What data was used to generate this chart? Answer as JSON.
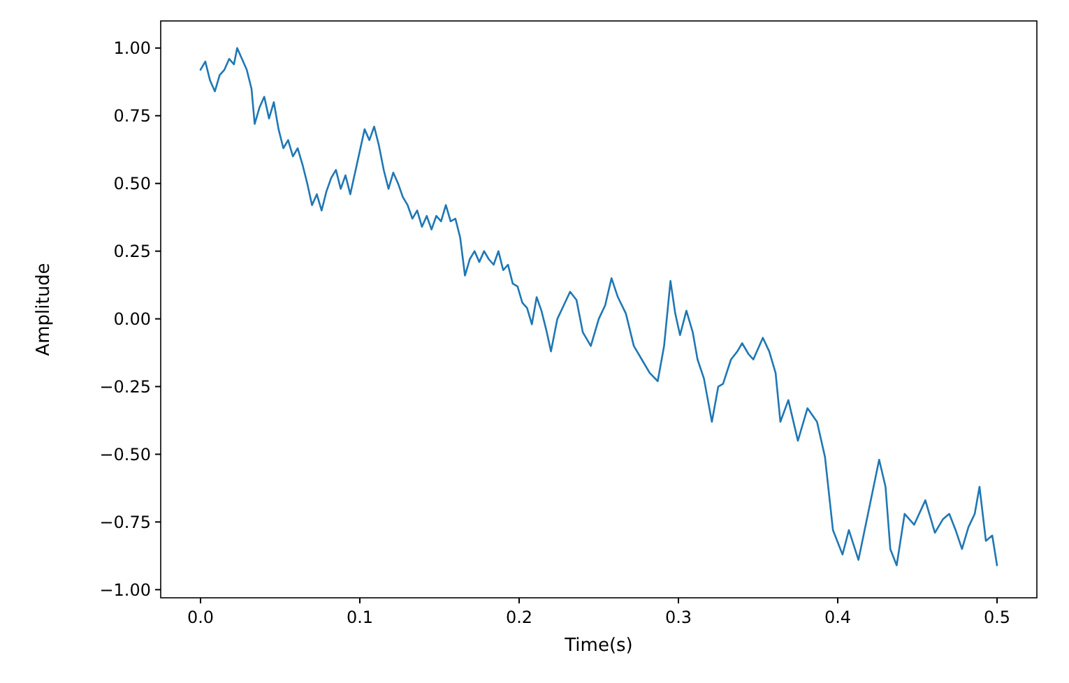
{
  "chart_data": {
    "type": "line",
    "xlabel": "Time(s)",
    "ylabel": "Amplitude",
    "xlim": [
      -0.025,
      0.525
    ],
    "ylim": [
      -1.03,
      1.1
    ],
    "xticks": [
      {
        "value": 0,
        "label": "0.0"
      },
      0.1,
      0.2,
      0.3,
      0.4,
      0.5
    ],
    "yticks": [
      {
        "value": -1,
        "label": "−1.00"
      },
      {
        "value": -0.75,
        "label": "−0.75"
      },
      {
        "value": -0.5,
        "label": "−0.50"
      },
      {
        "value": -0.25,
        "label": "−0.25"
      },
      {
        "value": 0,
        "label": "0.00"
      },
      {
        "value": 0.25,
        "label": "0.25"
      },
      {
        "value": 0.5,
        "label": "0.50"
      },
      {
        "value": 0.75,
        "label": "0.75"
      },
      {
        "value": 1,
        "label": "1.00"
      }
    ],
    "x": [
      0,
      0.003,
      0.006,
      0.009,
      0.012,
      0.015,
      0.018,
      0.021,
      0.023,
      0.026,
      0.029,
      0.032,
      0.034,
      0.037,
      0.04,
      0.043,
      0.046,
      0.049,
      0.052,
      0.055,
      0.058,
      0.061,
      0.064,
      0.067,
      0.07,
      0.073,
      0.076,
      0.079,
      0.082,
      0.085,
      0.088,
      0.091,
      0.094,
      0.097,
      0.1,
      0.103,
      0.106,
      0.109,
      0.112,
      0.115,
      0.118,
      0.121,
      0.124,
      0.127,
      0.13,
      0.133,
      0.136,
      0.139,
      0.142,
      0.145,
      0.148,
      0.151,
      0.154,
      0.157,
      0.16,
      0.163,
      0.166,
      0.169,
      0.172,
      0.175,
      0.178,
      0.181,
      0.184,
      0.187,
      0.19,
      0.193,
      0.196,
      0.199,
      0.202,
      0.205,
      0.208,
      0.211,
      0.214,
      0.217,
      0.22,
      0.224,
      0.228,
      0.232,
      0.236,
      0.24,
      0.245,
      0.25,
      0.254,
      0.258,
      0.262,
      0.267,
      0.272,
      0.277,
      0.282,
      0.287,
      0.291,
      0.295,
      0.298,
      0.301,
      0.305,
      0.309,
      0.312,
      0.316,
      0.321,
      0.325,
      0.328,
      0.333,
      0.337,
      0.34,
      0.344,
      0.347,
      0.353,
      0.357,
      0.361,
      0.364,
      0.369,
      0.375,
      0.381,
      0.387,
      0.392,
      0.397,
      0.403,
      0.407,
      0.413,
      0.419,
      0.426,
      0.43,
      0.433,
      0.437,
      0.442,
      0.448,
      0.455,
      0.461,
      0.466,
      0.47,
      0.474,
      0.478,
      0.482,
      0.486,
      0.489,
      0.493,
      0.497,
      0.5
    ],
    "series": [
      {
        "color": "#1f77b4",
        "values": [
          0.92,
          0.95,
          0.88,
          0.84,
          0.9,
          0.92,
          0.96,
          0.94,
          1.0,
          0.96,
          0.92,
          0.85,
          0.72,
          0.78,
          0.82,
          0.74,
          0.8,
          0.7,
          0.63,
          0.66,
          0.6,
          0.63,
          0.57,
          0.5,
          0.42,
          0.46,
          0.4,
          0.47,
          0.52,
          0.55,
          0.48,
          0.53,
          0.46,
          0.54,
          0.62,
          0.7,
          0.66,
          0.71,
          0.64,
          0.55,
          0.48,
          0.54,
          0.5,
          0.45,
          0.42,
          0.37,
          0.4,
          0.34,
          0.38,
          0.33,
          0.38,
          0.36,
          0.42,
          0.36,
          0.37,
          0.3,
          0.16,
          0.22,
          0.25,
          0.21,
          0.25,
          0.22,
          0.2,
          0.25,
          0.18,
          0.2,
          0.13,
          0.12,
          0.06,
          0.04,
          -0.02,
          0.08,
          0.03,
          -0.04,
          -0.12,
          0.0,
          0.05,
          0.1,
          0.07,
          -0.05,
          -0.1,
          0.0,
          0.05,
          0.15,
          0.08,
          0.02,
          -0.1,
          -0.15,
          -0.2,
          -0.23,
          -0.1,
          0.14,
          0.02,
          -0.06,
          0.03,
          -0.05,
          -0.15,
          -0.22,
          -0.38,
          -0.25,
          -0.24,
          -0.15,
          -0.12,
          -0.09,
          -0.13,
          -0.15,
          -0.07,
          -0.12,
          -0.2,
          -0.38,
          -0.3,
          -0.45,
          -0.33,
          -0.38,
          -0.51,
          -0.78,
          -0.87,
          -0.78,
          -0.89,
          -0.72,
          -0.52,
          -0.62,
          -0.85,
          -0.91,
          -0.72,
          -0.76,
          -0.67,
          -0.79,
          -0.74,
          -0.72,
          -0.78,
          -0.85,
          -0.77,
          -0.72,
          -0.62,
          -0.82,
          -0.8,
          -0.91
        ]
      }
    ]
  }
}
